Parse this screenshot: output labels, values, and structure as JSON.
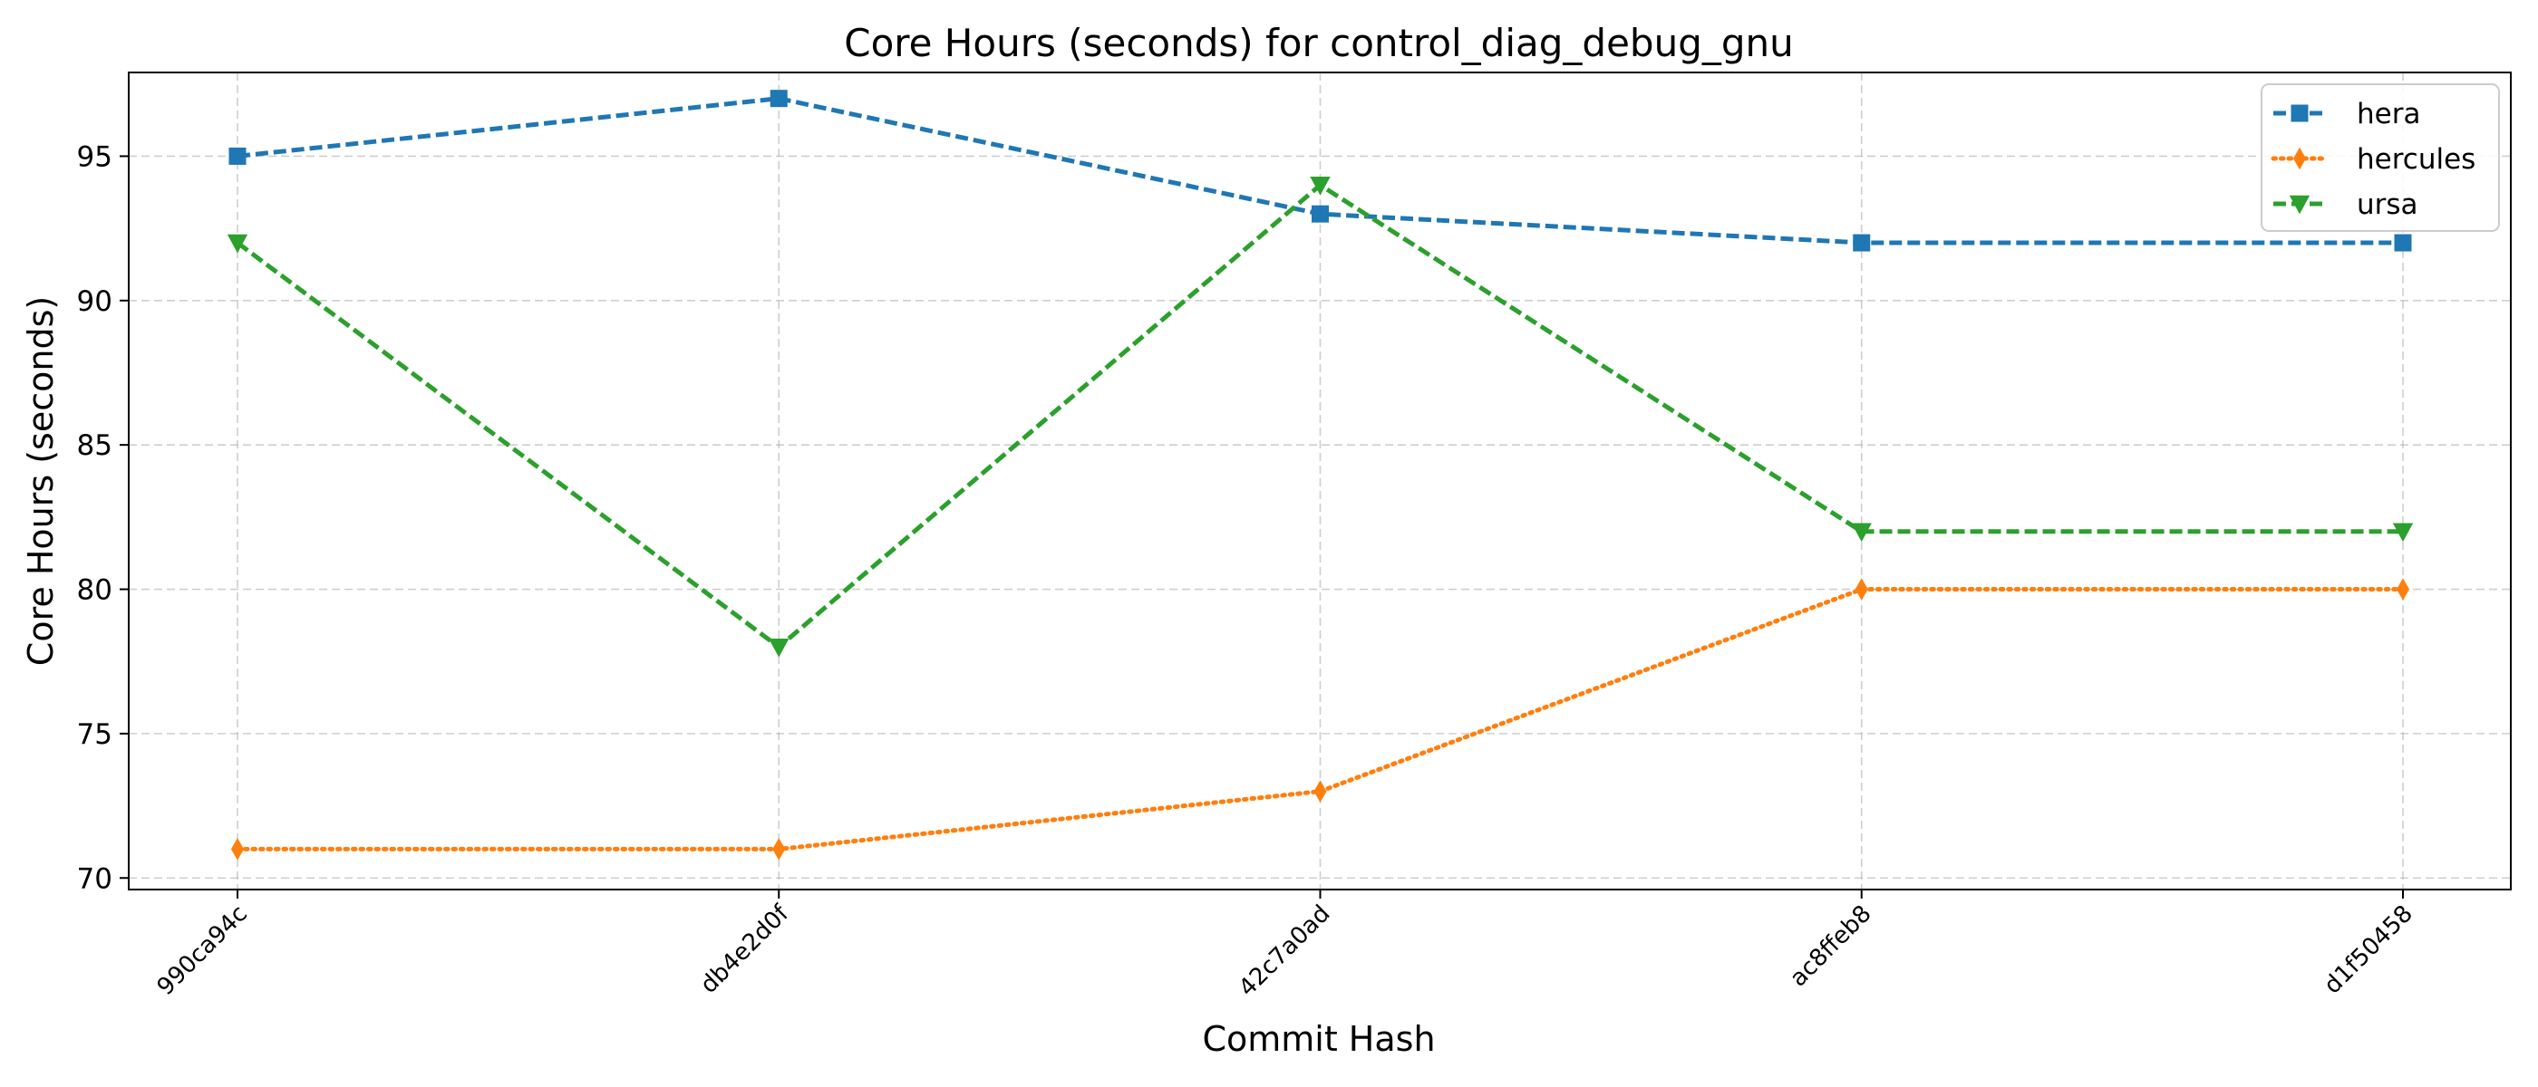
{
  "chart_data": {
    "type": "line",
    "title": "Core Hours (seconds) for control_diag_debug_gnu",
    "xlabel": "Commit Hash",
    "ylabel": "Core Hours (seconds)",
    "categories": [
      "990ca94c",
      "db4e2d0f",
      "42c7a0ad",
      "ac8ffeb8",
      "d1f50458"
    ],
    "ylim": [
      69.6,
      97.9
    ],
    "yticks": [
      70,
      75,
      80,
      85,
      90,
      95
    ],
    "grid": true,
    "legend_position": "top-right",
    "series": [
      {
        "name": "hera",
        "values": [
          95,
          97,
          93,
          92,
          92
        ],
        "color": "#1f77b4",
        "line_style": "dashed",
        "marker": "square"
      },
      {
        "name": "hercules",
        "values": [
          71,
          71,
          73,
          80,
          80
        ],
        "color": "#ff7f0e",
        "line_style": "dotted",
        "marker": "thin-diamond"
      },
      {
        "name": "ursa",
        "values": [
          92,
          78,
          94,
          82,
          82
        ],
        "color": "#2ca02c",
        "line_style": "dashed",
        "marker": "triangle-down"
      }
    ]
  }
}
